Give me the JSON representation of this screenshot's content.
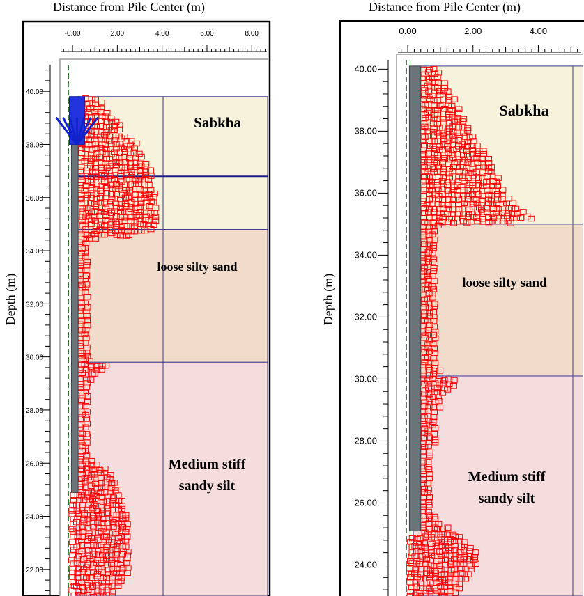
{
  "chart_data": [
    {
      "type": "scatter",
      "title": "Distance from Pile Center (m)",
      "xlabel": "Distance from Pile Center (m)",
      "ylabel": "Depth (m)",
      "x_ticks": [
        "-0.00",
        "2.00",
        "4.00",
        "6.00",
        "8.00"
      ],
      "y_ticks": [
        "40.00",
        "38.00",
        "36.00",
        "34.00",
        "32.00",
        "30.00",
        "28.00",
        "26.00",
        "24.00",
        "22.00"
      ],
      "xlim": [
        -0.5,
        8.8
      ],
      "ylim": [
        21.0,
        41.0
      ],
      "grid": false,
      "pile": {
        "x": [
          -0.05,
          0.25
        ],
        "top": 39.8,
        "bottom": 24.9
      },
      "load_arrow": {
        "x": 0.2,
        "top": 39.8,
        "bottom": 38.0
      },
      "layers": [
        {
          "name": "Sabkha",
          "top": 39.8,
          "bottom": 34.8,
          "color": "#f6f2dc"
        },
        {
          "name": "loose silty sand",
          "top": 34.8,
          "bottom": 29.8,
          "color": "#f1dccc"
        },
        {
          "name": "Medium stiff sandy silt",
          "top": 29.8,
          "bottom": 21.0,
          "color": "#f6dddd"
        }
      ],
      "water_table": 36.8,
      "marker_color": "#ff0000",
      "series": [
        {
          "values": [
            [
              39.8,
              1.0
            ],
            [
              39.0,
              1.8
            ],
            [
              38.0,
              2.8
            ],
            [
              37.0,
              3.4
            ],
            [
              36.0,
              3.6
            ],
            [
              35.0,
              3.6
            ],
            [
              34.8,
              3.3
            ],
            [
              34.5,
              0.6
            ],
            [
              33.0,
              0.55
            ],
            [
              31.0,
              0.5
            ],
            [
              30.0,
              0.6
            ],
            [
              29.8,
              1.6
            ],
            [
              29.5,
              1.0
            ],
            [
              29.0,
              0.6
            ],
            [
              28.0,
              0.55
            ],
            [
              27.0,
              0.5
            ],
            [
              26.3,
              0.6
            ],
            [
              25.8,
              1.6
            ],
            [
              25.0,
              2.0
            ],
            [
              24.0,
              2.4
            ],
            [
              23.0,
              2.5
            ],
            [
              22.0,
              2.4
            ],
            [
              21.3,
              1.8
            ]
          ]
        }
      ]
    },
    {
      "type": "scatter",
      "title": "Distance from Pile Center (m)",
      "xlabel": "Distance from Pile Center (m)",
      "ylabel": "Depth (m)",
      "x_ticks": [
        "0.00",
        "2.00",
        "4.00"
      ],
      "y_ticks": [
        "40.00",
        "38.00",
        "36.00",
        "34.00",
        "32.00",
        "30.00",
        "28.00",
        "26.00",
        "24.00"
      ],
      "xlim": [
        -0.3,
        5.4
      ],
      "ylim": [
        23.0,
        40.3
      ],
      "grid": false,
      "pile": {
        "x": [
          0.05,
          0.4
        ],
        "top": 40.1,
        "bottom": 25.1
      },
      "layers": [
        {
          "name": "Sabkha",
          "top": 40.1,
          "bottom": 35.0,
          "color": "#f6f2dc"
        },
        {
          "name": "loose silty sand",
          "top": 35.0,
          "bottom": 30.1,
          "color": "#f1dccc"
        },
        {
          "name": "Medium stiff sandy silt",
          "top": 30.1,
          "bottom": 23.0,
          "color": "#f6dddd"
        }
      ],
      "marker_color": "#ff0000",
      "series": [
        {
          "values": [
            [
              40.1,
              0.8
            ],
            [
              39.0,
              1.4
            ],
            [
              38.0,
              1.9
            ],
            [
              37.0,
              2.5
            ],
            [
              36.0,
              2.9
            ],
            [
              35.5,
              3.4
            ],
            [
              35.2,
              4.0
            ],
            [
              35.0,
              0.8
            ],
            [
              33.0,
              0.7
            ],
            [
              31.0,
              0.7
            ],
            [
              30.2,
              0.9
            ],
            [
              30.0,
              1.5
            ],
            [
              29.6,
              1.0
            ],
            [
              29.0,
              0.8
            ],
            [
              28.0,
              0.7
            ],
            [
              27.0,
              0.6
            ],
            [
              26.0,
              0.6
            ],
            [
              25.4,
              0.9
            ],
            [
              25.0,
              1.6
            ],
            [
              24.5,
              2.0
            ],
            [
              24.0,
              2.0
            ],
            [
              23.5,
              1.6
            ],
            [
              23.0,
              1.3
            ]
          ]
        }
      ]
    }
  ]
}
